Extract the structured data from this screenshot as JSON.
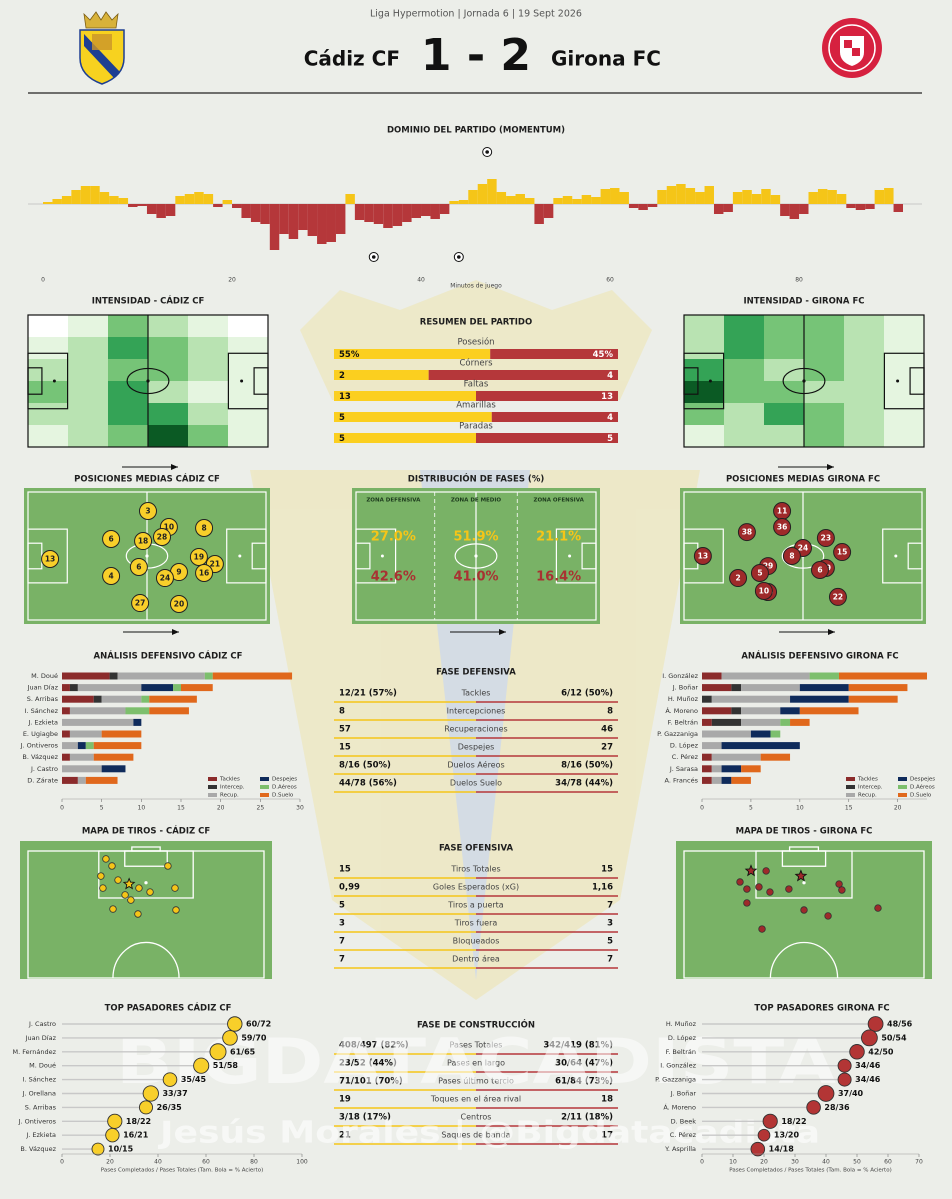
{
  "header": {
    "competition": "Liga Hypermotion | Jornada 6 | 19 Sept 2026",
    "home": "Cádiz CF",
    "away": "Girona FC",
    "score": "1 - 2"
  },
  "chart_data": [
    {
      "type": "bar",
      "title": "DOMINIO DEL PARTIDO (MOMENTUM)",
      "xlabel": "Minutos de juego",
      "x": [
        0,
        1,
        2,
        3,
        4,
        5,
        6,
        7,
        8,
        9,
        10,
        11,
        12,
        13,
        14,
        15,
        16,
        17,
        18,
        19,
        20,
        21,
        22,
        23,
        24,
        25,
        26,
        27,
        28,
        29,
        30,
        31,
        32,
        33,
        34,
        35,
        36,
        37,
        38,
        39,
        40,
        41,
        42,
        43,
        44,
        45,
        46,
        47,
        48,
        49,
        50,
        51,
        52,
        53,
        54,
        55,
        56,
        57,
        58,
        59,
        60,
        61,
        62,
        63,
        64,
        65,
        66,
        67,
        68,
        69,
        70,
        71,
        72,
        73,
        74,
        75,
        76,
        77,
        78,
        79,
        80,
        81,
        82,
        83,
        84,
        85,
        86,
        87,
        88,
        89,
        90
      ],
      "values": [
        2,
        5,
        8,
        14,
        18,
        18,
        12,
        8,
        6,
        -3,
        -2,
        -10,
        -14,
        -12,
        8,
        10,
        12,
        10,
        -3,
        4,
        -4,
        -14,
        -18,
        -20,
        -46,
        -30,
        -35,
        -26,
        -32,
        -40,
        -38,
        -30,
        10,
        -16,
        -18,
        -20,
        -24,
        -22,
        -18,
        -14,
        -12,
        -15,
        -10,
        3,
        4,
        14,
        20,
        25,
        12,
        8,
        10,
        6,
        -20,
        -14,
        6,
        8,
        5,
        9,
        7,
        15,
        16,
        12,
        -4,
        -6,
        -3,
        14,
        18,
        20,
        16,
        12,
        18,
        -10,
        -8,
        12,
        14,
        10,
        15,
        9,
        -12,
        -15,
        -10,
        12,
        15,
        14,
        10,
        -4,
        -6,
        -5,
        14,
        16,
        -8
      ],
      "color_positive": "#f5c518",
      "color_negative": "#b5373a",
      "xlim": [
        0,
        91
      ],
      "ylim": [
        -60,
        60
      ],
      "xticks": [
        0,
        20,
        40,
        60,
        80
      ],
      "goals_home": [
        47
      ],
      "goals_away": [
        35,
        44
      ]
    },
    {
      "type": "stacked_barh",
      "title": "ANÁLISIS DEFENSIVO CÁDIZ CF",
      "categories": [
        "M. Doué",
        "Juan Díaz",
        "S. Arribas",
        "I. Sánchez",
        "J. Ezkieta",
        "E. Ugiagbe",
        "J. Ontiveros",
        "B. Vázquez",
        "J. Castro",
        "D. Zárate"
      ],
      "series": [
        {
          "name": "Tackles",
          "color": "#8b2b2b",
          "values": [
            6,
            1,
            4,
            1,
            0,
            1,
            0,
            1,
            0,
            2
          ]
        },
        {
          "name": "Intercep.",
          "color": "#333333",
          "values": [
            1,
            1,
            1,
            0,
            0,
            0,
            0,
            0,
            0,
            0
          ]
        },
        {
          "name": "Recup.",
          "color": "#a9a9a9",
          "values": [
            11,
            8,
            5,
            7,
            9,
            4,
            2,
            3,
            5,
            1
          ]
        },
        {
          "name": "Despejes",
          "color": "#0f2b5b",
          "values": [
            0,
            4,
            0,
            0,
            1,
            0,
            1,
            0,
            3,
            0
          ]
        },
        {
          "name": "D.Aéreos",
          "color": "#7dbf6d",
          "values": [
            1,
            1,
            1,
            3,
            0,
            0,
            1,
            0,
            0,
            0
          ]
        },
        {
          "name": "D.Suelo",
          "color": "#e0681c",
          "values": [
            10,
            4,
            6,
            5,
            0,
            5,
            6,
            5,
            0,
            4
          ]
        }
      ],
      "xlim": [
        0,
        30
      ],
      "xticks": [
        0,
        5,
        10,
        15,
        20,
        25,
        30
      ]
    },
    {
      "type": "stacked_barh",
      "title": "ANÁLISIS DEFENSIVO GIRONA FC",
      "categories": [
        "I. González",
        "J. Boñar",
        "H. Muñoz",
        "Á. Moreno",
        "F. Beltrán",
        "P. Gazzaniga",
        "D. López",
        "C. Pérez",
        "J. Sarasa",
        "A. Francés"
      ],
      "series": [
        {
          "name": "Tackles",
          "color": "#8b2b2b",
          "values": [
            2,
            3,
            0,
            3,
            1,
            0,
            0,
            1,
            1,
            1
          ]
        },
        {
          "name": "Intercep.",
          "color": "#333333",
          "values": [
            0,
            1,
            1,
            1,
            3,
            0,
            0,
            0,
            0,
            0
          ]
        },
        {
          "name": "Recup.",
          "color": "#a9a9a9",
          "values": [
            9,
            6,
            8,
            4,
            4,
            5,
            2,
            5,
            1,
            1
          ]
        },
        {
          "name": "Despejes",
          "color": "#0f2b5b",
          "values": [
            0,
            5,
            6,
            2,
            0,
            2,
            8,
            0,
            2,
            1
          ]
        },
        {
          "name": "D.Aéreos",
          "color": "#7dbf6d",
          "values": [
            3,
            0,
            0,
            0,
            1,
            1,
            0,
            0,
            0,
            0
          ]
        },
        {
          "name": "D.Suelo",
          "color": "#e0681c",
          "values": [
            9,
            6,
            5,
            6,
            2,
            0,
            0,
            3,
            2,
            2
          ]
        }
      ],
      "xlim": [
        0,
        23
      ],
      "xticks": [
        0,
        5,
        10,
        15,
        20
      ]
    },
    {
      "type": "lollipop",
      "title": "TOP PASADORES CÁDIZ CF",
      "xlabel": "Pases Completados / Pases Totales (Tam. Bola = % Acierto)",
      "categories": [
        "J. Castro",
        "Juan Díaz",
        "M. Fernández",
        "M. Doué",
        "I. Sánchez",
        "J. Orellana",
        "S. Arribas",
        "J. Ontiveros",
        "J. Ezkieta",
        "B. Vázquez"
      ],
      "completed": [
        60,
        59,
        61,
        51,
        35,
        33,
        26,
        18,
        16,
        10
      ],
      "values": [
        72,
        70,
        65,
        58,
        45,
        37,
        35,
        22,
        21,
        15
      ],
      "value_labels": [
        "60/72",
        "59/70",
        "61/65",
        "51/58",
        "35/45",
        "33/37",
        "26/35",
        "18/22",
        "16/21",
        "10/15"
      ],
      "color": "#f8cf2a",
      "xlim": [
        0,
        100
      ],
      "xticks": [
        0,
        20,
        40,
        60,
        80,
        100
      ]
    },
    {
      "type": "lollipop",
      "title": "TOP PASADORES GIRONA FC",
      "xlabel": "Pases Completados / Pases Totales (Tam. Bola = % Acierto)",
      "categories": [
        "H. Muñoz",
        "D. López",
        "F. Beltrán",
        "I. González",
        "P. Gazzaniga",
        "J. Boñar",
        "Á. Moreno",
        "D. Beek",
        "C. Pérez",
        "Y. Asprilla"
      ],
      "completed": [
        48,
        50,
        42,
        34,
        34,
        37,
        28,
        18,
        13,
        14
      ],
      "values": [
        56,
        54,
        50,
        46,
        46,
        40,
        36,
        22,
        20,
        18
      ],
      "value_labels": [
        "48/56",
        "50/54",
        "42/50",
        "34/46",
        "34/46",
        "37/40",
        "28/36",
        "18/22",
        "13/20",
        "14/18"
      ],
      "color": "#b33535",
      "xlim": [
        0,
        70
      ],
      "xticks": [
        0,
        10,
        20,
        30,
        40,
        50,
        60,
        70
      ]
    }
  ],
  "intensity": {
    "colors": [
      "#ffffff",
      "#e5f5e0",
      "#b9e3b2",
      "#76c477",
      "#34a356",
      "#0b5a24"
    ],
    "maps": [
      {
        "title": "INTENSIDAD - CÁDIZ CF",
        "cells": [
          [
            0,
            1,
            3,
            2,
            1,
            0
          ],
          [
            1,
            2,
            4,
            3,
            2,
            1
          ],
          [
            2,
            2,
            3,
            3,
            2,
            1
          ],
          [
            3,
            2,
            4,
            2,
            1,
            1
          ],
          [
            2,
            2,
            4,
            4,
            2,
            1
          ],
          [
            1,
            2,
            3,
            5,
            3,
            1
          ]
        ]
      },
      {
        "title": "INTENSIDAD - GIRONA FC",
        "cells": [
          [
            2,
            4,
            3,
            3,
            2,
            1
          ],
          [
            2,
            4,
            3,
            3,
            2,
            1
          ],
          [
            4,
            3,
            2,
            3,
            2,
            1
          ],
          [
            5,
            3,
            3,
            2,
            2,
            1
          ],
          [
            3,
            2,
            4,
            3,
            2,
            1
          ],
          [
            1,
            2,
            2,
            3,
            2,
            1
          ]
        ]
      }
    ]
  },
  "summary": {
    "title": "RESUMEN DEL PARTIDO",
    "color_home": "#fbcf1f",
    "color_away": "#b5373a",
    "rows": [
      {
        "label": "Posesión",
        "home": 55,
        "away": 45,
        "home_label": "55%",
        "away_label": "45%"
      },
      {
        "label": "Córners",
        "home": 2,
        "away": 4
      },
      {
        "label": "Faltas",
        "home": 13,
        "away": 13
      },
      {
        "label": "Amarillas",
        "home": 5,
        "away": 4
      },
      {
        "label": "Paradas",
        "home": 5,
        "away": 5
      }
    ]
  },
  "positions": [
    {
      "title": "POSICIONES MEDIAS CÁDIZ CF",
      "color": "#f8cf2a",
      "text_color": "#222222",
      "players": [
        {
          "number": 13,
          "x": 10.6,
          "y": 52.2
        },
        {
          "number": 3,
          "x": 50.4,
          "y": 16.9
        },
        {
          "number": 10,
          "x": 58.9,
          "y": 28.7
        },
        {
          "number": 8,
          "x": 73.2,
          "y": 29.4
        },
        {
          "number": 6,
          "x": 35.4,
          "y": 37.5
        },
        {
          "number": 18,
          "x": 48.4,
          "y": 39.0
        },
        {
          "number": 28,
          "x": 56.1,
          "y": 36.0
        },
        {
          "number": 19,
          "x": 71.1,
          "y": 50.7
        },
        {
          "number": 6,
          "x": 46.7,
          "y": 58.1
        },
        {
          "number": 21,
          "x": 77.6,
          "y": 55.9
        },
        {
          "number": 16,
          "x": 73.2,
          "y": 62.5
        },
        {
          "number": 9,
          "x": 63.0,
          "y": 61.8
        },
        {
          "number": 24,
          "x": 57.3,
          "y": 66.2
        },
        {
          "number": 4,
          "x": 35.4,
          "y": 64.7
        },
        {
          "number": 27,
          "x": 47.2,
          "y": 84.6
        },
        {
          "number": 20,
          "x": 63.0,
          "y": 85.3
        }
      ]
    },
    {
      "title": "POSICIONES MEDIAS GIRONA FC",
      "color": "#9e2a2a",
      "text_color": "#ffffff",
      "players": [
        {
          "number": 13,
          "x": 9.3,
          "y": 50.0
        },
        {
          "number": 38,
          "x": 27.2,
          "y": 32.4
        },
        {
          "number": 11,
          "x": 41.5,
          "y": 16.9
        },
        {
          "number": 36,
          "x": 41.5,
          "y": 28.7
        },
        {
          "number": 24,
          "x": 50.0,
          "y": 44.1
        },
        {
          "number": 8,
          "x": 45.5,
          "y": 50.0
        },
        {
          "number": 23,
          "x": 59.3,
          "y": 36.8
        },
        {
          "number": 15,
          "x": 65.9,
          "y": 47.1
        },
        {
          "number": 29,
          "x": 35.8,
          "y": 57.4
        },
        {
          "number": 5,
          "x": 32.5,
          "y": 62.5
        },
        {
          "number": 2,
          "x": 23.6,
          "y": 66.2
        },
        {
          "number": 19,
          "x": 59.3,
          "y": 58.8
        },
        {
          "number": 6,
          "x": 56.9,
          "y": 60.3
        },
        {
          "number": 16,
          "x": 35.8,
          "y": 76.5
        },
        {
          "number": 10,
          "x": 34.1,
          "y": 75.7
        },
        {
          "number": 22,
          "x": 64.2,
          "y": 80.1
        }
      ]
    }
  ],
  "phase_distribution": {
    "title": "DISTRIBUCIÓN DE FASES (%)",
    "zones": [
      "ZONA DEFENSIVA",
      "ZONA DE MEDIO",
      "ZONA OFENSIVA"
    ],
    "home": [
      "27.0%",
      "51.9%",
      "21.1%"
    ],
    "away": [
      "42.6%",
      "41.0%",
      "16.4%"
    ],
    "color_home": "#f5c518",
    "color_away": "#a83232"
  },
  "defensive_phase": {
    "title": "FASE DEFENSIVA",
    "rows": [
      {
        "label": "Tackles",
        "home": "12/21 (57%)",
        "away": "6/12 (50%)"
      },
      {
        "label": "Intercepciones",
        "home": "8",
        "away": "8"
      },
      {
        "label": "Recuperaciones",
        "home": "57",
        "away": "46"
      },
      {
        "label": "Despejes",
        "home": "15",
        "away": "27"
      },
      {
        "label": "Duelos Aéreos",
        "home": "8/16 (50%)",
        "away": "8/16 (50%)"
      },
      {
        "label": "Duelos Suelo",
        "home": "44/78 (56%)",
        "away": "34/78 (44%)"
      }
    ]
  },
  "offensive_phase": {
    "title": "FASE OFENSIVA",
    "rows": [
      {
        "label": "Tiros Totales",
        "home": "15",
        "away": "15"
      },
      {
        "label": "Goles Esperados (xG)",
        "home": "0,99",
        "away": "1,16"
      },
      {
        "label": "Tiros a puerta",
        "home": "5",
        "away": "7"
      },
      {
        "label": "Tiros fuera",
        "home": "3",
        "away": "3"
      },
      {
        "label": "Bloqueados",
        "home": "7",
        "away": "5"
      },
      {
        "label": "Dentro área",
        "home": "7",
        "away": "7"
      }
    ]
  },
  "construction_phase": {
    "title": "FASE DE CONSTRUCCIÓN",
    "rows": [
      {
        "label": "Pases Totales",
        "home": "408/497 (82%)",
        "away": "342/419 (81%)"
      },
      {
        "label": "Pases en largo",
        "home": "23/52 (44%)",
        "away": "30/64 (47%)"
      },
      {
        "label": "Pases último tercio",
        "home": "71/101 (70%)",
        "away": "61/84 (73%)"
      },
      {
        "label": "Toques en el área rival",
        "home": "19",
        "away": "18"
      },
      {
        "label": "Centros",
        "home": "3/18 (17%)",
        "away": "2/11 (18%)"
      },
      {
        "label": "Saques de banda",
        "home": "21",
        "away": "17"
      }
    ]
  },
  "shot_maps": [
    {
      "title": "MAPA DE TIROS - CÁDIZ CF",
      "color": "#f5c518",
      "shots": [
        {
          "x": 34.1,
          "y": 13.0
        },
        {
          "x": 36.5,
          "y": 18.1
        },
        {
          "x": 58.7,
          "y": 18.1
        },
        {
          "x": 32.1,
          "y": 25.4
        },
        {
          "x": 32.9,
          "y": 34.1
        },
        {
          "x": 38.9,
          "y": 28.3
        },
        {
          "x": 43.3,
          "y": 31.2,
          "goal": true
        },
        {
          "x": 47.2,
          "y": 34.1
        },
        {
          "x": 51.6,
          "y": 37.0
        },
        {
          "x": 41.7,
          "y": 39.1
        },
        {
          "x": 44.0,
          "y": 42.8
        },
        {
          "x": 61.5,
          "y": 34.1
        },
        {
          "x": 36.9,
          "y": 49.3
        },
        {
          "x": 46.8,
          "y": 52.9
        },
        {
          "x": 61.9,
          "y": 50.0
        }
      ]
    },
    {
      "title": "MAPA DE TIROS - GIRONA FC",
      "color": "#9e2a2a",
      "shots": [
        {
          "x": 29.3,
          "y": 21.7,
          "goal": true
        },
        {
          "x": 35.2,
          "y": 21.7
        },
        {
          "x": 48.8,
          "y": 25.4,
          "goal": true
        },
        {
          "x": 25.0,
          "y": 29.7
        },
        {
          "x": 27.7,
          "y": 34.8
        },
        {
          "x": 32.4,
          "y": 33.3
        },
        {
          "x": 36.7,
          "y": 37.0
        },
        {
          "x": 44.1,
          "y": 34.8
        },
        {
          "x": 63.7,
          "y": 31.2
        },
        {
          "x": 64.8,
          "y": 35.5
        },
        {
          "x": 27.7,
          "y": 44.9
        },
        {
          "x": 50.0,
          "y": 50.0
        },
        {
          "x": 59.4,
          "y": 54.3
        },
        {
          "x": 78.9,
          "y": 48.6
        },
        {
          "x": 33.6,
          "y": 63.8
        }
      ]
    }
  ],
  "watermark": {
    "brand": "BIGDATACADISTA",
    "credit": "Jesús Morales | @Bigdatacadista"
  }
}
